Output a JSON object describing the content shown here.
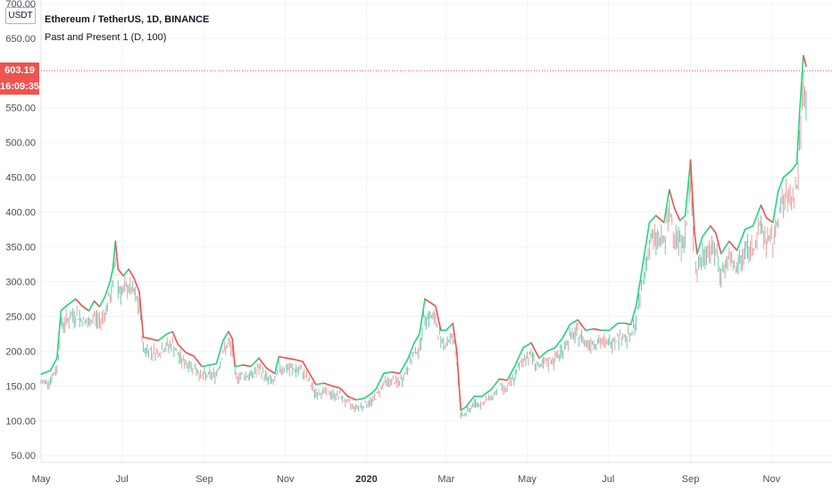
{
  "header": {
    "title": "Ethereum / TetherUS, 1D, BINANCE",
    "indicator": "Past and Present 1 (D, 100)",
    "currency": "USDT"
  },
  "badges": {
    "last_price": "603.19",
    "countdown": "16:09:35",
    "color": "#ef5350"
  },
  "colors": {
    "up": "#26d47f",
    "down": "#ef5350",
    "grid": "#f0f3fa",
    "dashed": "#ef5350"
  },
  "chart_data": {
    "type": "line",
    "ylim": [
      40,
      705
    ],
    "y_ticks": [
      "50.00",
      "100.00",
      "150.00",
      "200.00",
      "250.00",
      "300.00",
      "350.00",
      "400.00",
      "450.00",
      "500.00",
      "550.00",
      "650.00",
      "700.00"
    ],
    "y_tick_values": [
      50,
      100,
      150,
      200,
      250,
      300,
      350,
      400,
      450,
      500,
      550,
      650,
      700
    ],
    "x_ticks": [
      "May",
      "Jul",
      "Sep",
      "Nov",
      "2020",
      "Mar",
      "May",
      "Jul",
      "Sep",
      "Nov"
    ],
    "x_tick_bold": [
      false,
      false,
      false,
      false,
      true,
      false,
      false,
      false,
      false,
      false
    ],
    "x_range": [
      "2019-05-01",
      "2020-11-27"
    ],
    "x_tick_dates": [
      "2019-05-01",
      "2019-07-01",
      "2019-09-01",
      "2019-11-01",
      "2020-01-01",
      "2020-03-01",
      "2020-05-01",
      "2020-07-01",
      "2020-09-01",
      "2020-11-01"
    ],
    "last_price": 603.19,
    "series": [
      {
        "values": [
          [
            "2019-05-01",
            167
          ],
          [
            "2019-05-08",
            172
          ],
          [
            "2019-05-13",
            190
          ],
          [
            "2019-05-16",
            258
          ],
          [
            "2019-05-20",
            265
          ],
          [
            "2019-05-27",
            275
          ],
          [
            "2019-06-01",
            265
          ],
          [
            "2019-06-06",
            258
          ],
          [
            "2019-06-10",
            272
          ],
          [
            "2019-06-14",
            264
          ],
          [
            "2019-06-18",
            278
          ],
          [
            "2019-06-22",
            300
          ],
          [
            "2019-06-24",
            318
          ],
          [
            "2019-06-26",
            358
          ],
          [
            "2019-06-28",
            318
          ],
          [
            "2019-07-02",
            308
          ],
          [
            "2019-07-06",
            318
          ],
          [
            "2019-07-10",
            305
          ],
          [
            "2019-07-14",
            285
          ],
          [
            "2019-07-17",
            220
          ],
          [
            "2019-07-22",
            218
          ],
          [
            "2019-07-28",
            215
          ],
          [
            "2019-08-04",
            225
          ],
          [
            "2019-08-08",
            228
          ],
          [
            "2019-08-12",
            210
          ],
          [
            "2019-08-18",
            198
          ],
          [
            "2019-08-24",
            193
          ],
          [
            "2019-08-30",
            178
          ],
          [
            "2019-09-05",
            180
          ],
          [
            "2019-09-10",
            182
          ],
          [
            "2019-09-15",
            215
          ],
          [
            "2019-09-19",
            228
          ],
          [
            "2019-09-22",
            218
          ],
          [
            "2019-09-24",
            178
          ],
          [
            "2019-09-30",
            180
          ],
          [
            "2019-10-06",
            178
          ],
          [
            "2019-10-12",
            190
          ],
          [
            "2019-10-18",
            175
          ],
          [
            "2019-10-24",
            168
          ],
          [
            "2019-10-27",
            192
          ],
          [
            "2019-11-02",
            190
          ],
          [
            "2019-11-08",
            188
          ],
          [
            "2019-11-14",
            185
          ],
          [
            "2019-11-20",
            165
          ],
          [
            "2019-11-24",
            152
          ],
          [
            "2019-11-30",
            154
          ],
          [
            "2019-12-06",
            150
          ],
          [
            "2019-12-12",
            147
          ],
          [
            "2019-12-18",
            135
          ],
          [
            "2019-12-24",
            130
          ],
          [
            "2019-12-30",
            132
          ],
          [
            "2020-01-04",
            138
          ],
          [
            "2020-01-08",
            145
          ],
          [
            "2020-01-14",
            168
          ],
          [
            "2020-01-20",
            170
          ],
          [
            "2020-01-26",
            168
          ],
          [
            "2020-02-01",
            188
          ],
          [
            "2020-02-06",
            212
          ],
          [
            "2020-02-10",
            225
          ],
          [
            "2020-02-14",
            275
          ],
          [
            "2020-02-18",
            270
          ],
          [
            "2020-02-22",
            265
          ],
          [
            "2020-02-26",
            230
          ],
          [
            "2020-03-01",
            230
          ],
          [
            "2020-03-06",
            240
          ],
          [
            "2020-03-09",
            200
          ],
          [
            "2020-03-12",
            115
          ],
          [
            "2020-03-16",
            120
          ],
          [
            "2020-03-22",
            135
          ],
          [
            "2020-03-28",
            135
          ],
          [
            "2020-04-04",
            145
          ],
          [
            "2020-04-10",
            160
          ],
          [
            "2020-04-16",
            158
          ],
          [
            "2020-04-22",
            180
          ],
          [
            "2020-04-28",
            205
          ],
          [
            "2020-05-04",
            212
          ],
          [
            "2020-05-10",
            190
          ],
          [
            "2020-05-16",
            200
          ],
          [
            "2020-05-22",
            205
          ],
          [
            "2020-05-28",
            220
          ],
          [
            "2020-06-02",
            238
          ],
          [
            "2020-06-08",
            245
          ],
          [
            "2020-06-14",
            230
          ],
          [
            "2020-06-20",
            232
          ],
          [
            "2020-06-26",
            230
          ],
          [
            "2020-07-02",
            230
          ],
          [
            "2020-07-08",
            240
          ],
          [
            "2020-07-14",
            240
          ],
          [
            "2020-07-18",
            238
          ],
          [
            "2020-07-22",
            265
          ],
          [
            "2020-07-26",
            312
          ],
          [
            "2020-08-01",
            385
          ],
          [
            "2020-08-06",
            395
          ],
          [
            "2020-08-12",
            385
          ],
          [
            "2020-08-16",
            432
          ],
          [
            "2020-08-20",
            405
          ],
          [
            "2020-08-24",
            388
          ],
          [
            "2020-08-28",
            395
          ],
          [
            "2020-09-01",
            475
          ],
          [
            "2020-09-04",
            370
          ],
          [
            "2020-09-06",
            340
          ],
          [
            "2020-09-10",
            365
          ],
          [
            "2020-09-16",
            380
          ],
          [
            "2020-09-20",
            370
          ],
          [
            "2020-09-24",
            340
          ],
          [
            "2020-09-30",
            358
          ],
          [
            "2020-10-06",
            345
          ],
          [
            "2020-10-12",
            375
          ],
          [
            "2020-10-18",
            380
          ],
          [
            "2020-10-24",
            410
          ],
          [
            "2020-10-28",
            392
          ],
          [
            "2020-11-02",
            385
          ],
          [
            "2020-11-06",
            430
          ],
          [
            "2020-11-10",
            450
          ],
          [
            "2020-11-16",
            460
          ],
          [
            "2020-11-20",
            470
          ],
          [
            "2020-11-22",
            540
          ],
          [
            "2020-11-24",
            600
          ],
          [
            "2020-11-25",
            625
          ],
          [
            "2020-11-27",
            610
          ]
        ]
      }
    ]
  }
}
